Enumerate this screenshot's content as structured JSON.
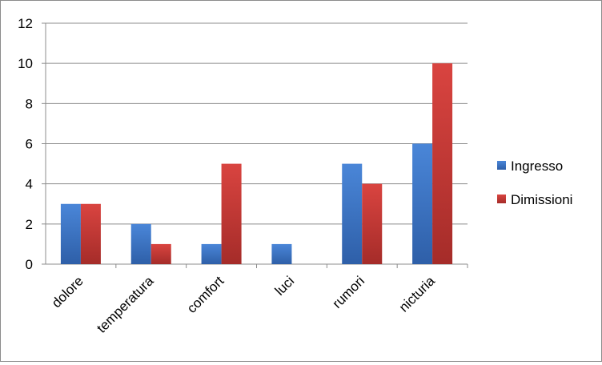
{
  "chart_data": {
    "type": "bar",
    "title": "",
    "xlabel": "",
    "ylabel": "",
    "categories": [
      "dolore",
      "temperatura",
      "comfort",
      "luci",
      "rumori",
      "nicturia"
    ],
    "series": [
      {
        "name": "Ingresso",
        "values": [
          3,
          2,
          1,
          1,
          5,
          6
        ],
        "color": "#3A74C4"
      },
      {
        "name": "Dimissioni",
        "values": [
          3,
          1,
          5,
          0,
          4,
          10
        ],
        "color": "#C93A36"
      }
    ],
    "ylim": [
      0,
      12
    ],
    "yticks": [
      0,
      2,
      4,
      6,
      8,
      10,
      12
    ],
    "grid": true,
    "legend_position": "right"
  }
}
